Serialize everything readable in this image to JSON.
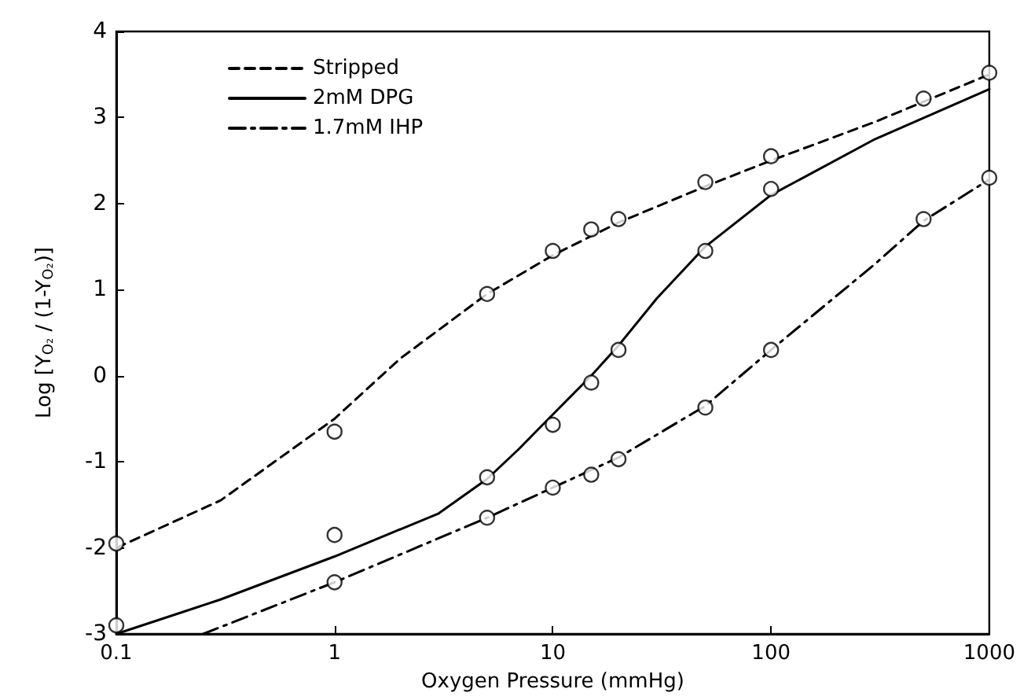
{
  "chart_data": {
    "type": "line",
    "xlabel": "Oxygen Pressure (mmHg)",
    "ylabel": "Log [Y$_{O₂}$ / (1-Y$_{O₂}$)]",
    "log": "x",
    "xlim": [
      0.1,
      1000
    ],
    "xticks": [
      0.1,
      1,
      10,
      100,
      1000
    ],
    "ylim": [
      -3,
      4
    ],
    "yticks": [
      -3,
      -2,
      -1,
      0,
      1,
      2,
      3,
      4
    ],
    "grid": false,
    "legend": "top left",
    "series": [
      {
        "name": "Stripped",
        "color": "#000000",
        "line_style": "dashed",
        "marker": "none",
        "x": [
          0.1,
          0.3,
          1,
          2,
          5,
          10,
          20,
          50,
          100,
          300,
          1000
        ],
        "values": [
          -2,
          -1.45,
          -0.5,
          0.2,
          0.95,
          1.4,
          1.78,
          2.2,
          2.5,
          2.95,
          3.5
        ]
      },
      {
        "name": "2mM DPG",
        "color": "#000000",
        "line_style": "solid",
        "marker": "none",
        "x": [
          0.1,
          0.3,
          1,
          3,
          5,
          7,
          10,
          15,
          20,
          30,
          50,
          100,
          300,
          1000
        ],
        "values": [
          -3,
          -2.6,
          -2.1,
          -1.6,
          -1.2,
          -0.85,
          -0.45,
          0,
          0.35,
          0.9,
          1.5,
          2.1,
          2.75,
          3.33
        ]
      },
      {
        "name": "1.7mM IHP",
        "color": "#000000",
        "line_style": "dashdot",
        "marker": "none",
        "x": [
          0.25,
          1,
          5,
          10,
          20,
          50,
          100,
          300,
          500,
          1000
        ],
        "values": [
          -3,
          -2.4,
          -1.65,
          -1.3,
          -0.95,
          -0.35,
          0.3,
          1.3,
          1.8,
          2.28
        ]
      },
      {
        "type": "scatter",
        "color": "#000000",
        "marker": "circle",
        "x": [
          0.1,
          1,
          5,
          10,
          15,
          20,
          50,
          100,
          500,
          1000
        ],
        "values": [
          -1.95,
          -0.65,
          0.95,
          1.45,
          1.7,
          1.82,
          2.25,
          2.55,
          3.22,
          3.52
        ]
      },
      {
        "type": "scatter",
        "color": "#000000",
        "marker": "circle",
        "x": [
          0.1,
          1,
          5,
          10,
          15,
          20,
          50,
          100
        ],
        "values": [
          -2.9,
          -1.85,
          -1.18,
          -0.57,
          -0.08,
          0.3,
          1.45,
          2.17
        ]
      },
      {
        "type": "scatter",
        "color": "#000000",
        "marker": "circle",
        "x": [
          1,
          5,
          10,
          15,
          20,
          50,
          100,
          500,
          1000
        ],
        "values": [
          -2.4,
          -1.65,
          -1.3,
          -1.15,
          -0.97,
          -0.37,
          0.3,
          1.82,
          2.3
        ]
      }
    ]
  }
}
